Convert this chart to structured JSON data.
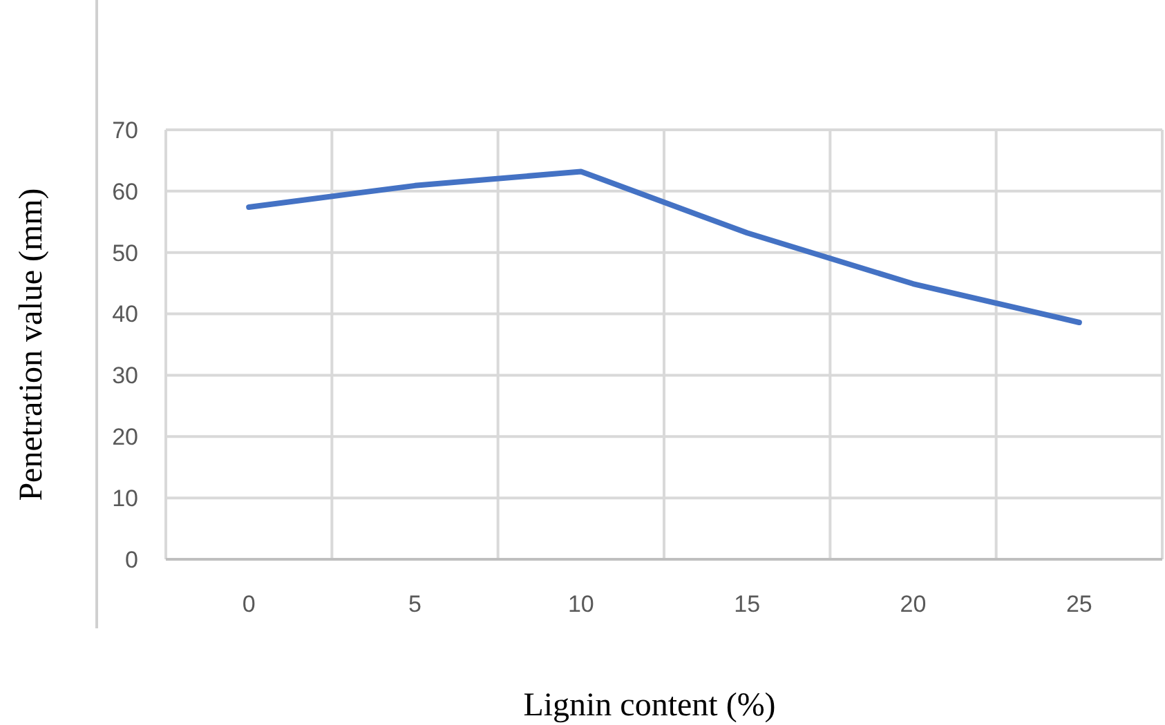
{
  "chart_data": {
    "type": "line",
    "xlabel": "Lignin content (%)",
    "ylabel": "Penetration value (mm)",
    "categories": [
      "0",
      "5",
      "10",
      "15",
      "20",
      "25"
    ],
    "series": [
      {
        "color": "#4472c4",
        "values": [
          57.4,
          60.9,
          63.2,
          53.2,
          44.9,
          38.6
        ]
      }
    ],
    "ylim": [
      0,
      70
    ],
    "yticks": [
      0,
      10,
      20,
      30,
      40,
      50,
      60,
      70
    ],
    "grid": true,
    "marker": "none",
    "line_style": "solid"
  }
}
